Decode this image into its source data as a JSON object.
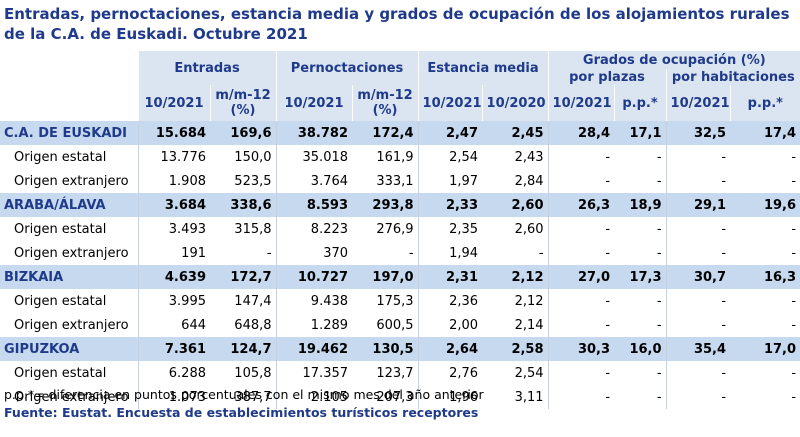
{
  "title": "Entradas, pernoctaciones, estancia media y grados de ocupación de los alojamientos rurales de la C.A. de Euskadi.  Octubre 2021",
  "headers": {
    "entradas": "Entradas",
    "pernoctaciones": "Pernoctaciones",
    "estancia": "Estancia media",
    "grados": "Grados de ocupación (%)",
    "por_plazas": "por plazas",
    "por_habitaciones": "por habitaciones",
    "col_10_2021": "10/2021",
    "col_10_2020": "10/2020",
    "col_mm12_line1": "m/m-12",
    "col_mm12_line2": "(%)",
    "col_pp": "p.p.*"
  },
  "rows": [
    {
      "label": "C.A. DE EUSKADI",
      "type": "region",
      "v": [
        "15.684",
        "169,6",
        "38.782",
        "172,4",
        "2,47",
        "2,45",
        "28,4",
        "17,1",
        "32,5",
        "17,4"
      ]
    },
    {
      "label": "Origen estatal",
      "type": "sub",
      "v": [
        "13.776",
        "150,0",
        "35.018",
        "161,9",
        "2,54",
        "2,43",
        "-",
        "-",
        "-",
        "-"
      ]
    },
    {
      "label": "Origen extranjero",
      "type": "sub",
      "v": [
        "1.908",
        "523,5",
        "3.764",
        "333,1",
        "1,97",
        "2,84",
        "-",
        "-",
        "-",
        "-"
      ]
    },
    {
      "label": "ARABA/ÁLAVA",
      "type": "region",
      "v": [
        "3.684",
        "338,6",
        "8.593",
        "293,8",
        "2,33",
        "2,60",
        "26,3",
        "18,9",
        "29,1",
        "19,6"
      ]
    },
    {
      "label": "Origen estatal",
      "type": "sub",
      "v": [
        "3.493",
        "315,8",
        "8.223",
        "276,9",
        "2,35",
        "2,60",
        "-",
        "-",
        "-",
        "-"
      ]
    },
    {
      "label": "Origen extranjero",
      "type": "sub",
      "v": [
        "191",
        "-",
        "370",
        "-",
        "1,94",
        "-",
        "-",
        "-",
        "-",
        "-"
      ]
    },
    {
      "label": "BIZKAIA",
      "type": "region",
      "v": [
        "4.639",
        "172,7",
        "10.727",
        "197,0",
        "2,31",
        "2,12",
        "27,0",
        "17,3",
        "30,7",
        "16,3"
      ]
    },
    {
      "label": "Origen estatal",
      "type": "sub",
      "v": [
        "3.995",
        "147,4",
        "9.438",
        "175,3",
        "2,36",
        "2,12",
        "-",
        "-",
        "-",
        "-"
      ]
    },
    {
      "label": "Origen extranjero",
      "type": "sub",
      "v": [
        "644",
        "648,8",
        "1.289",
        "600,5",
        "2,00",
        "2,14",
        "-",
        "-",
        "-",
        "-"
      ]
    },
    {
      "label": "GIPUZKOA",
      "type": "region",
      "v": [
        "7.361",
        "124,7",
        "19.462",
        "130,5",
        "2,64",
        "2,58",
        "30,3",
        "16,0",
        "35,4",
        "17,0"
      ]
    },
    {
      "label": "Origen estatal",
      "type": "sub",
      "v": [
        "6.288",
        "105,8",
        "17.357",
        "123,7",
        "2,76",
        "2,54",
        "-",
        "-",
        "-",
        "-"
      ]
    },
    {
      "label": "Origen extranjero",
      "type": "sub",
      "v": [
        "1.073",
        "387,7",
        "2.105",
        "207,3",
        "1,96",
        "3,11",
        "-",
        "-",
        "-",
        "-"
      ]
    }
  ],
  "footnote": "p.p.*= diferencia en puntos porcentuales con el mismo mes del año anterior",
  "source": "Fuente: Eustat. Encuesta de establecimientos turísticos receptores"
}
